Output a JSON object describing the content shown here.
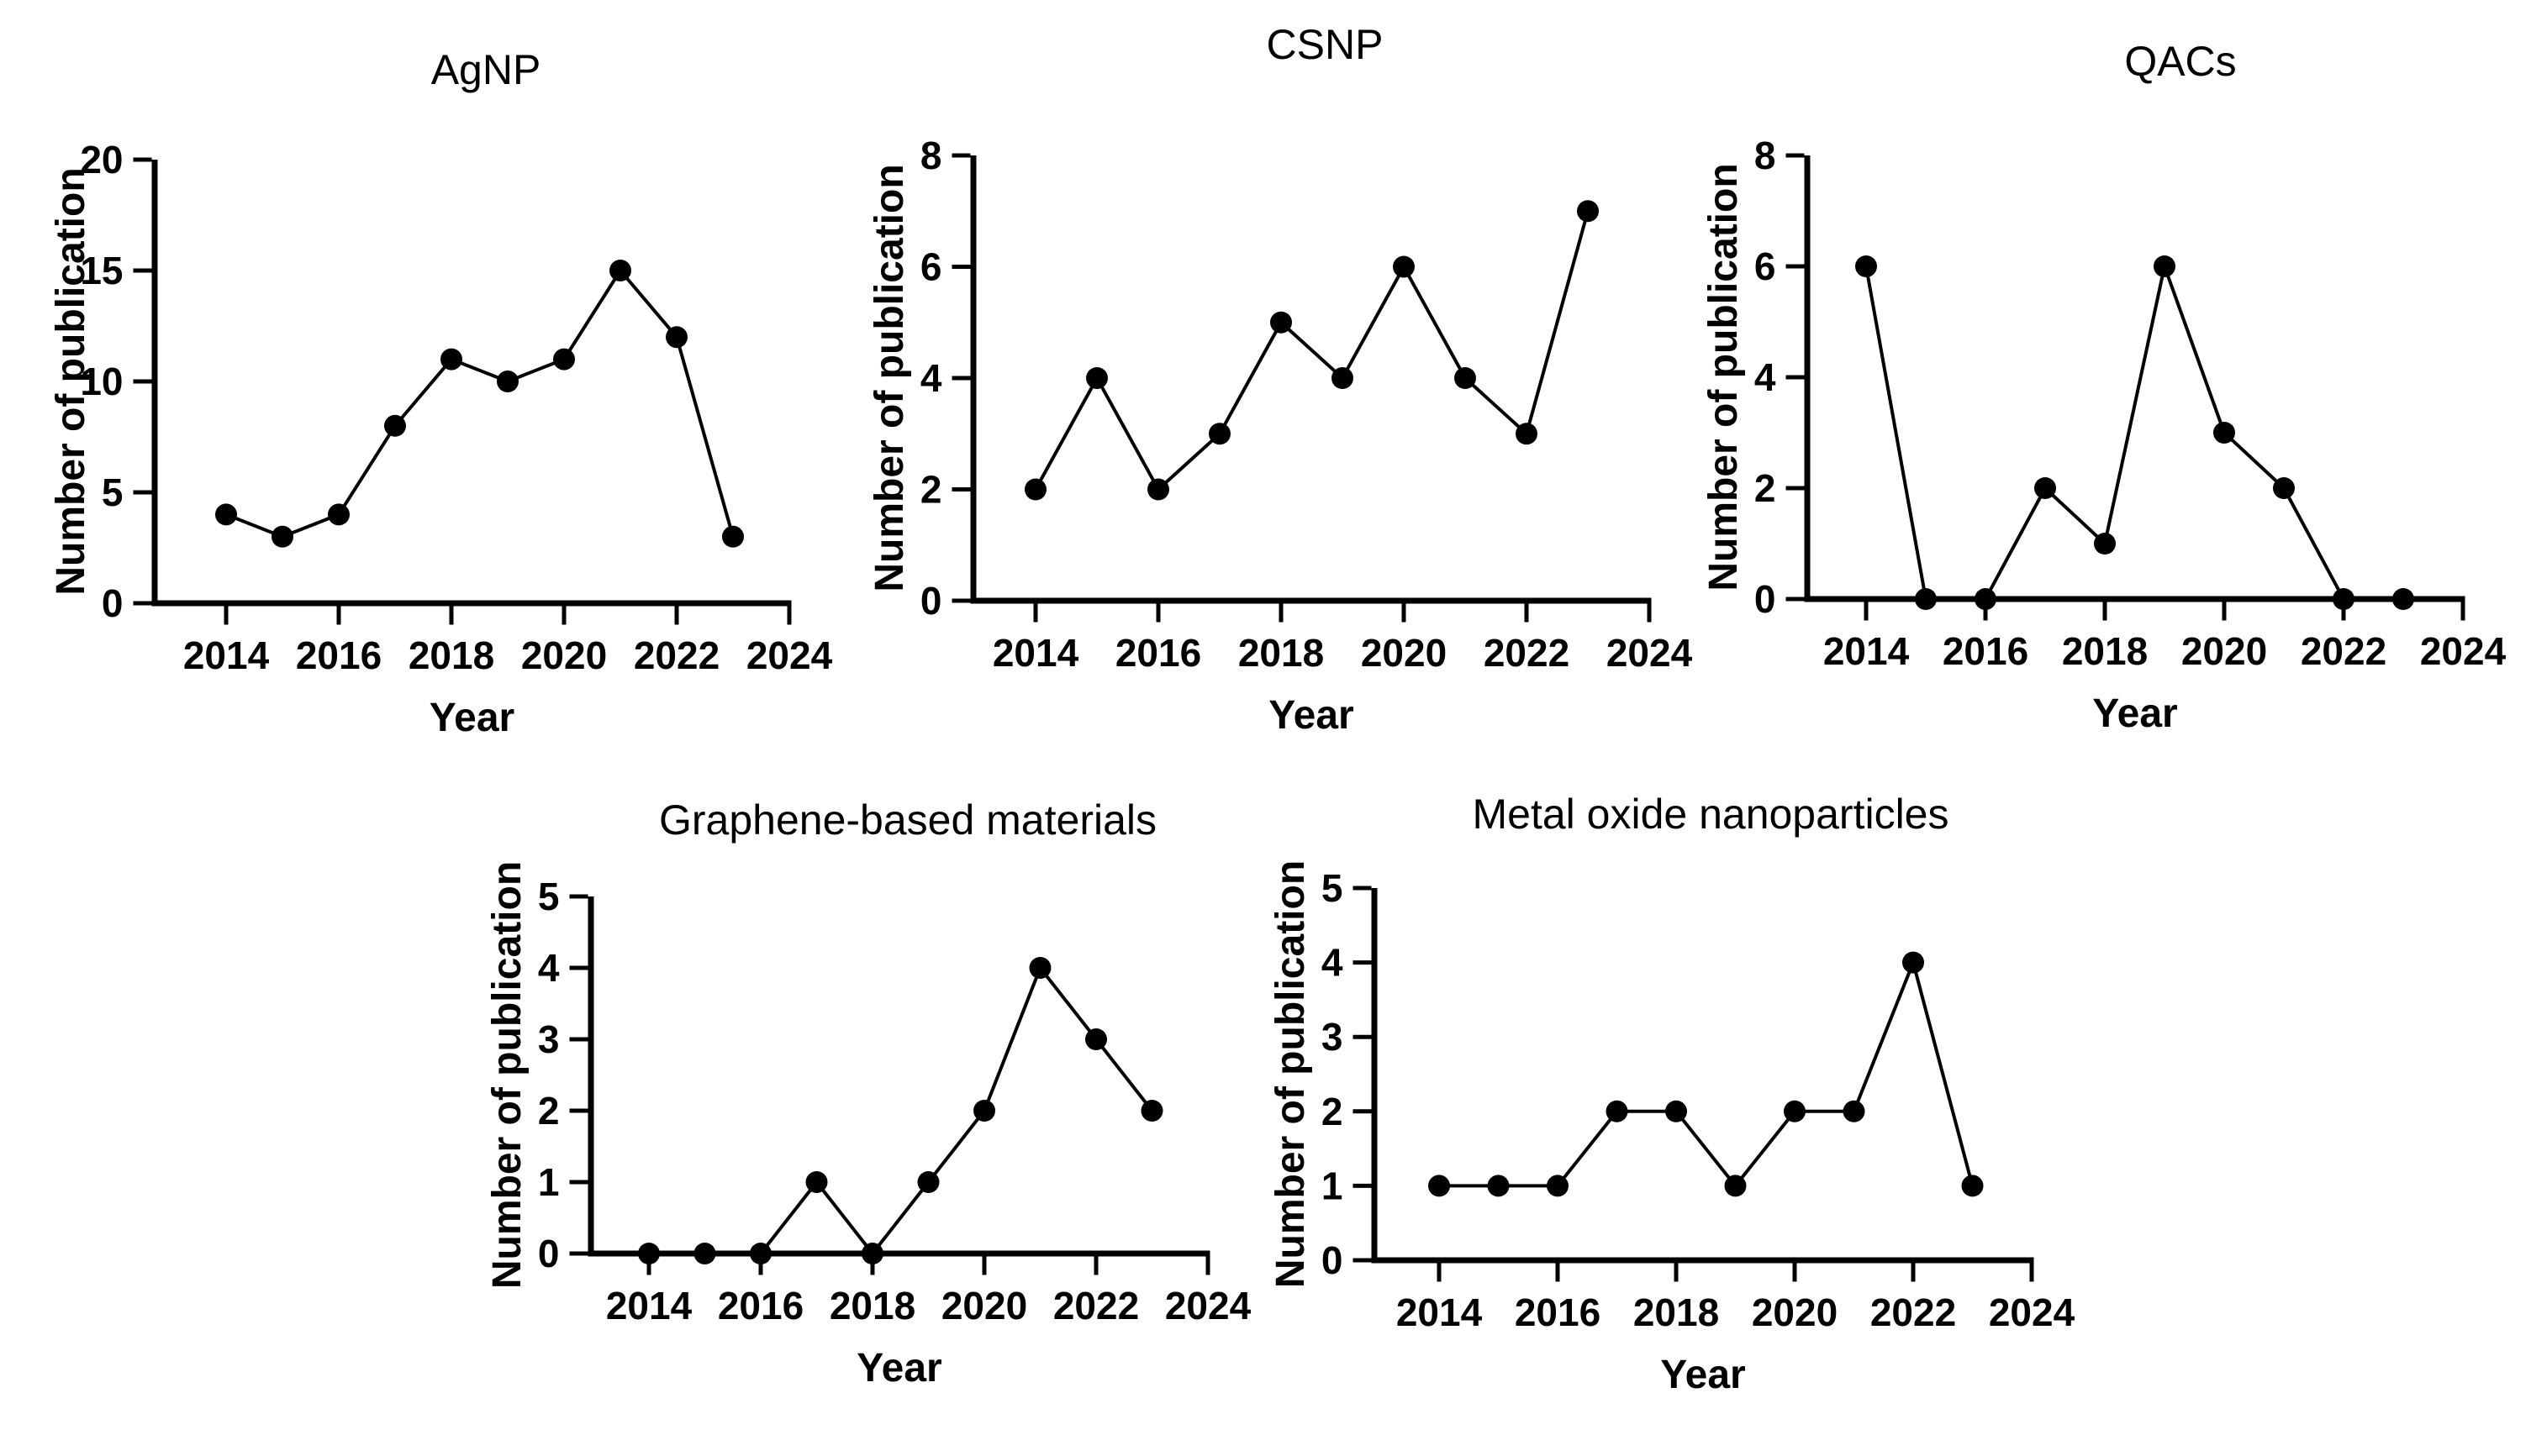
{
  "page": {
    "background": "#ffffff",
    "ink_color": "#000000"
  },
  "chart_data": [
    {
      "type": "line",
      "title": "AgNP",
      "xlabel": "Year",
      "ylabel": "Number of publication",
      "x": [
        2014,
        2015,
        2016,
        2017,
        2018,
        2019,
        2020,
        2021,
        2022,
        2023
      ],
      "values": [
        4,
        3,
        4,
        8,
        11,
        10,
        11,
        15,
        12,
        3
      ],
      "ylim": [
        0,
        20
      ],
      "yticks": [
        0,
        5,
        10,
        15,
        20
      ],
      "xlim": [
        2014,
        2024
      ],
      "xticks": [
        2014,
        2016,
        2018,
        2020,
        2022,
        2024
      ],
      "grid": false,
      "legend": "none",
      "marker": "filled-circle",
      "line_color": "#000000"
    },
    {
      "type": "line",
      "title": "CSNP",
      "xlabel": "Year",
      "ylabel": "Number of publication",
      "x": [
        2014,
        2015,
        2016,
        2017,
        2018,
        2019,
        2020,
        2021,
        2022,
        2023
      ],
      "values": [
        2,
        4,
        2,
        3,
        5,
        4,
        6,
        4,
        3,
        7
      ],
      "ylim": [
        0,
        8
      ],
      "yticks": [
        0,
        2,
        4,
        6,
        8
      ],
      "xlim": [
        2014,
        2024
      ],
      "xticks": [
        2014,
        2016,
        2018,
        2020,
        2022,
        2024
      ],
      "grid": false,
      "legend": "none",
      "marker": "filled-circle",
      "line_color": "#000000"
    },
    {
      "type": "line",
      "title": "QACs",
      "xlabel": "Year",
      "ylabel": "Number of publication",
      "x": [
        2014,
        2015,
        2016,
        2017,
        2018,
        2019,
        2020,
        2021,
        2022,
        2023
      ],
      "values": [
        6,
        0,
        0,
        2,
        1,
        6,
        3,
        2,
        0,
        0
      ],
      "ylim": [
        0,
        8
      ],
      "yticks": [
        0,
        2,
        4,
        6,
        8
      ],
      "xlim": [
        2014,
        2024
      ],
      "xticks": [
        2014,
        2016,
        2018,
        2020,
        2022,
        2024
      ],
      "grid": false,
      "legend": "none",
      "marker": "filled-circle",
      "line_color": "#000000"
    },
    {
      "type": "line",
      "title": "Graphene-based materials",
      "xlabel": "Year",
      "ylabel": "Number of publication",
      "x": [
        2014,
        2015,
        2016,
        2017,
        2018,
        2019,
        2020,
        2021,
        2022,
        2023
      ],
      "values": [
        0,
        0,
        0,
        1,
        0,
        1,
        2,
        4,
        3,
        2
      ],
      "ylim": [
        0,
        5
      ],
      "yticks": [
        0,
        1,
        2,
        3,
        4,
        5
      ],
      "xlim": [
        2014,
        2024
      ],
      "xticks": [
        2014,
        2016,
        2018,
        2020,
        2022,
        2024
      ],
      "grid": false,
      "legend": "none",
      "marker": "filled-circle",
      "line_color": "#000000"
    },
    {
      "type": "line",
      "title": "Metal oxide nanoparticles",
      "xlabel": "Year",
      "ylabel": "Number of publication",
      "x": [
        2014,
        2015,
        2016,
        2017,
        2018,
        2019,
        2020,
        2021,
        2022,
        2023
      ],
      "values": [
        1,
        1,
        1,
        2,
        2,
        1,
        2,
        2,
        4,
        1
      ],
      "ylim": [
        0,
        5
      ],
      "yticks": [
        0,
        1,
        2,
        3,
        4,
        5
      ],
      "xlim": [
        2014,
        2024
      ],
      "xticks": [
        2014,
        2016,
        2018,
        2020,
        2022,
        2024
      ],
      "grid": false,
      "legend": "none",
      "marker": "filled-circle",
      "line_color": "#000000"
    }
  ]
}
